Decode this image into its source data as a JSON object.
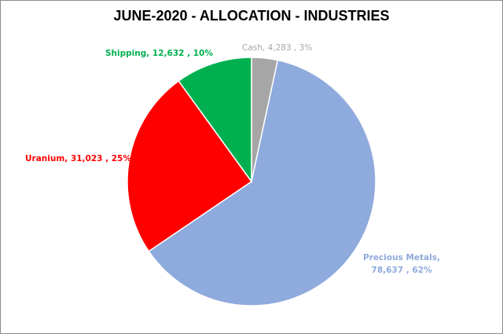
{
  "chart_data": {
    "type": "pie",
    "title": "JUNE-2020 - ALLOCATION - INDUSTRIES",
    "slices": [
      {
        "name": "Cash",
        "value": 4283,
        "percent": 3,
        "color": "#a6a6a6",
        "label_name": "Cash,",
        "label_value": "4,283 , 3%"
      },
      {
        "name": "Precious Metals",
        "value": 78637,
        "percent": 62,
        "color": "#8faadc",
        "label_name": "Precious Metals,",
        "label_value": "78,637 , 62%"
      },
      {
        "name": "Uranium",
        "value": 31023,
        "percent": 25,
        "color": "#ff0000",
        "label_name": "Uranium,",
        "label_value": "31,023 , 25%"
      },
      {
        "name": "Shipping",
        "value": 12632,
        "percent": 10,
        "color": "#00b050",
        "label_name": "Shipping,",
        "label_value": "12,632 , 10%"
      }
    ]
  }
}
